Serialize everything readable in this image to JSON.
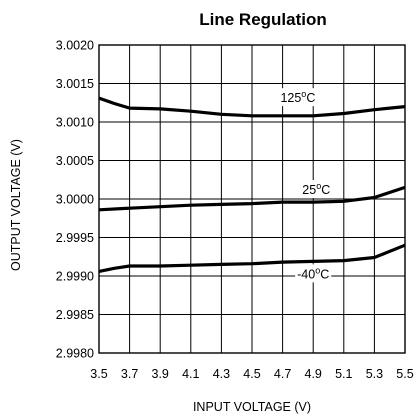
{
  "chart_data": {
    "type": "line",
    "title": "Line Regulation",
    "xlabel": "INPUT VOLTAGE (V)",
    "ylabel": "OUTPUT VOLTAGE (V)",
    "xlim": [
      3.5,
      5.5
    ],
    "ylim": [
      2.998,
      3.002
    ],
    "x_ticks": [
      "3.5",
      "3.7",
      "3.9",
      "4.1",
      "4.3",
      "4.5",
      "4.7",
      "4.9",
      "5.1",
      "5.3",
      "5.5"
    ],
    "y_ticks": [
      "3.0020",
      "3.0015",
      "3.0010",
      "3.0005",
      "3.0000",
      "2.9995",
      "2.9990",
      "2.9985",
      "2.9980"
    ],
    "grid": true,
    "series": [
      {
        "label_base": "125",
        "label_sup": "o",
        "label_unit": "C",
        "x": [
          3.5,
          3.6,
          3.7,
          3.9,
          4.1,
          4.3,
          4.5,
          4.7,
          4.9,
          5.1,
          5.3,
          5.5
        ],
        "y": [
          3.00131,
          3.00124,
          3.00118,
          3.00117,
          3.00114,
          3.0011,
          3.00108,
          3.00108,
          3.00108,
          3.00111,
          3.00116,
          3.0012
        ]
      },
      {
        "label_base": "25",
        "label_sup": "o",
        "label_unit": "C",
        "x": [
          3.5,
          3.7,
          3.9,
          4.1,
          4.3,
          4.5,
          4.7,
          4.9,
          5.1,
          5.3,
          5.5
        ],
        "y": [
          2.99986,
          2.99988,
          2.9999,
          2.99992,
          2.99993,
          2.99994,
          2.99996,
          2.99996,
          2.99997,
          3.00002,
          3.00015
        ]
      },
      {
        "label_base": "-40",
        "label_sup": "o",
        "label_unit": "C",
        "x": [
          3.5,
          3.6,
          3.7,
          3.9,
          4.1,
          4.3,
          4.5,
          4.7,
          4.9,
          5.1,
          5.3,
          5.5
        ],
        "y": [
          2.99906,
          2.9991,
          2.99913,
          2.99913,
          2.99914,
          2.99915,
          2.99916,
          2.99918,
          2.99919,
          2.9992,
          2.99924,
          2.9994
        ]
      }
    ]
  }
}
